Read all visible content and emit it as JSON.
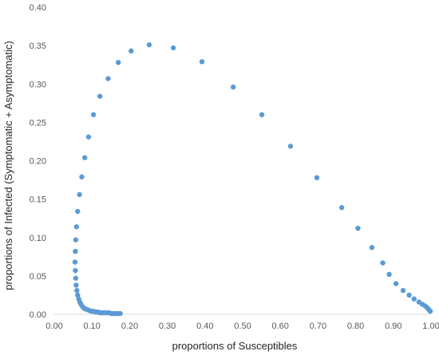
{
  "chart_data": {
    "type": "scatter",
    "title": "",
    "xlabel": "proportions of Susceptibles",
    "ylabel": "proportions of Infected (Symptomatic + Asymptomatic)",
    "xlim": [
      0,
      1
    ],
    "ylim": [
      0,
      0.4
    ],
    "grid": false,
    "legend": "none",
    "x_ticks": [
      "0.00",
      "0.10",
      "0.20",
      "0.30",
      "0.40",
      "0.50",
      "0.60",
      "0.70",
      "0.80",
      "0.90",
      "1.00"
    ],
    "y_ticks": [
      "0.00",
      "0.05",
      "0.10",
      "0.15",
      "0.20",
      "0.25",
      "0.30",
      "0.35",
      "0.40"
    ],
    "marker_color": "#5b9bd5",
    "series": [
      {
        "points": [
          [
            0.998,
            0.004
          ],
          [
            0.996,
            0.005
          ],
          [
            0.993,
            0.007
          ],
          [
            0.989,
            0.009
          ],
          [
            0.984,
            0.011
          ],
          [
            0.977,
            0.013
          ],
          [
            0.968,
            0.016
          ],
          [
            0.955,
            0.02
          ],
          [
            0.942,
            0.025
          ],
          [
            0.926,
            0.031
          ],
          [
            0.907,
            0.04
          ],
          [
            0.889,
            0.052
          ],
          [
            0.872,
            0.067
          ],
          [
            0.843,
            0.087
          ],
          [
            0.806,
            0.112
          ],
          [
            0.763,
            0.139
          ],
          [
            0.697,
            0.178
          ],
          [
            0.627,
            0.219
          ],
          [
            0.551,
            0.26
          ],
          [
            0.475,
            0.296
          ],
          [
            0.392,
            0.329
          ],
          [
            0.316,
            0.347
          ],
          [
            0.252,
            0.351
          ],
          [
            0.204,
            0.343
          ],
          [
            0.17,
            0.328
          ],
          [
            0.143,
            0.307
          ],
          [
            0.121,
            0.284
          ],
          [
            0.104,
            0.26
          ],
          [
            0.091,
            0.231
          ],
          [
            0.081,
            0.204
          ],
          [
            0.073,
            0.179
          ],
          [
            0.067,
            0.156
          ],
          [
            0.062,
            0.134
          ],
          [
            0.059,
            0.114
          ],
          [
            0.057,
            0.097
          ],
          [
            0.056,
            0.082
          ],
          [
            0.055,
            0.068
          ],
          [
            0.056,
            0.057
          ],
          [
            0.057,
            0.047
          ],
          [
            0.058,
            0.038
          ],
          [
            0.06,
            0.031
          ],
          [
            0.062,
            0.025
          ],
          [
            0.065,
            0.02
          ],
          [
            0.068,
            0.016
          ],
          [
            0.071,
            0.013
          ],
          [
            0.075,
            0.01
          ],
          [
            0.079,
            0.008
          ],
          [
            0.083,
            0.007
          ],
          [
            0.088,
            0.006
          ],
          [
            0.093,
            0.005
          ],
          [
            0.098,
            0.004
          ],
          [
            0.104,
            0.004
          ],
          [
            0.11,
            0.003
          ],
          [
            0.116,
            0.003
          ],
          [
            0.122,
            0.002
          ],
          [
            0.128,
            0.002
          ],
          [
            0.134,
            0.002
          ],
          [
            0.14,
            0.002
          ],
          [
            0.146,
            0.002
          ],
          [
            0.152,
            0.001
          ],
          [
            0.158,
            0.001
          ],
          [
            0.164,
            0.001
          ],
          [
            0.17,
            0.001
          ],
          [
            0.175,
            0.001
          ]
        ]
      }
    ]
  }
}
